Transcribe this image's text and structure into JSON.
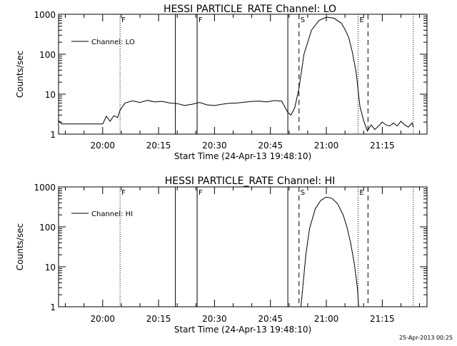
{
  "footer": {
    "timestamp": "25-Apr-2013 00:25"
  },
  "chart_data": [
    {
      "type": "line",
      "title": "HESSI PARTICLE_RATE Channel: LO",
      "xlabel": "Start Time (24-Apr-13 19:48:10)",
      "ylabel": "Counts/sec",
      "y_scale": "log",
      "xlim": [
        "19:48:10",
        "21:27:00"
      ],
      "ylim": [
        1,
        1000
      ],
      "xticks": [
        "20:00",
        "20:15",
        "20:30",
        "20:45",
        "21:00",
        "21:15"
      ],
      "yticks": [
        "1",
        "10",
        "100",
        "1000"
      ],
      "legend": {
        "label": "Channel: LO",
        "placement": "top-left"
      },
      "markers": [
        {
          "time": "20:04:40",
          "style": "dotted",
          "label": "F"
        },
        {
          "time": "20:19:30",
          "style": "solid",
          "label": ""
        },
        {
          "time": "20:25:20",
          "style": "solid",
          "label": "F"
        },
        {
          "time": "20:49:40",
          "style": "solid",
          "label": ""
        },
        {
          "time": "20:52:40",
          "style": "dashed",
          "label": "S"
        },
        {
          "time": "21:08:30",
          "style": "dotted",
          "label": "E"
        },
        {
          "time": "21:11:10",
          "style": "dashed",
          "label": ""
        },
        {
          "time": "21:23:20",
          "style": "dotted",
          "label": ""
        }
      ],
      "series": [
        {
          "x": [
            "19:48:10",
            "19:49:00",
            "19:50:00",
            "19:52:00",
            "19:55:00",
            "19:58:00",
            "20:00:00",
            "20:01:00",
            "20:02:00",
            "20:03:00",
            "20:04:00",
            "20:04:40",
            "20:06:00",
            "20:08:00",
            "20:10:00",
            "20:12:00",
            "20:14:00",
            "20:16:00",
            "20:18:00",
            "20:20:00",
            "20:22:00",
            "20:24:00",
            "20:26:00",
            "20:28:00",
            "20:30:00",
            "20:32:00",
            "20:34:00",
            "20:36:00",
            "20:38:00",
            "20:40:00",
            "20:42:00",
            "20:44:00",
            "20:46:00",
            "20:48:00",
            "20:49:40",
            "20:50:30",
            "20:51:30",
            "20:52:40",
            "20:54:00",
            "20:56:00",
            "20:58:00",
            "21:00:00",
            "21:02:00",
            "21:04:00",
            "21:05:00",
            "21:06:00",
            "21:07:00",
            "21:08:00",
            "21:09:00",
            "21:10:00",
            "21:11:00",
            "21:12:00",
            "21:13:00",
            "21:14:00",
            "21:15:00",
            "21:16:00",
            "21:17:00",
            "21:18:00",
            "21:19:00",
            "21:20:00",
            "21:21:00",
            "21:22:00",
            "21:23:00",
            "21:23:20"
          ],
          "values": [
            2.2,
            1.8,
            1.8,
            1.8,
            1.8,
            1.8,
            1.8,
            2.8,
            2.1,
            2.9,
            2.6,
            4.0,
            6.0,
            6.8,
            6.2,
            7.0,
            6.4,
            6.6,
            6.0,
            5.8,
            5.2,
            5.6,
            6.2,
            5.4,
            5.2,
            5.6,
            5.9,
            6.0,
            6.3,
            6.6,
            6.7,
            6.4,
            6.9,
            6.7,
            3.5,
            3.0,
            4.5,
            14,
            100,
            400,
            700,
            850,
            800,
            600,
            420,
            260,
            110,
            35,
            5,
            2.2,
            1.2,
            1.7,
            1.3,
            1.6,
            2.0,
            1.7,
            1.6,
            1.9,
            1.6,
            2.1,
            1.7,
            1.5,
            1.9,
            1.5
          ]
        }
      ]
    },
    {
      "type": "line",
      "title": "HESSI PARTICLE_RATE Channel: HI",
      "xlabel": "Start Time (24-Apr-13 19:48:10)",
      "ylabel": "Counts/sec",
      "y_scale": "log",
      "xlim": [
        "19:48:10",
        "21:27:00"
      ],
      "ylim": [
        1,
        1000
      ],
      "xticks": [
        "20:00",
        "20:15",
        "20:30",
        "20:45",
        "21:00",
        "21:15"
      ],
      "yticks": [
        "1",
        "10",
        "100",
        "1000"
      ],
      "legend": {
        "label": "Channel: HI",
        "placement": "top-left"
      },
      "markers": [
        {
          "time": "20:04:40",
          "style": "dotted",
          "label": "F"
        },
        {
          "time": "20:19:30",
          "style": "solid",
          "label": ""
        },
        {
          "time": "20:25:20",
          "style": "solid",
          "label": "F"
        },
        {
          "time": "20:49:40",
          "style": "solid",
          "label": ""
        },
        {
          "time": "20:52:40",
          "style": "dashed",
          "label": "S"
        },
        {
          "time": "21:08:30",
          "style": "dotted",
          "label": "E"
        },
        {
          "time": "21:11:10",
          "style": "dashed",
          "label": ""
        },
        {
          "time": "21:23:20",
          "style": "dotted",
          "label": ""
        }
      ],
      "series": [
        {
          "x": [
            "20:53:10",
            "20:53:40",
            "20:54:30",
            "20:55:30",
            "20:57:00",
            "20:58:30",
            "21:00:00",
            "21:01:30",
            "21:03:00",
            "21:04:30",
            "21:05:30",
            "21:06:30",
            "21:07:30",
            "21:08:20",
            "21:08:40"
          ],
          "values": [
            1,
            3,
            20,
            90,
            280,
            460,
            560,
            520,
            380,
            200,
            100,
            40,
            12,
            3,
            1
          ]
        }
      ]
    }
  ]
}
